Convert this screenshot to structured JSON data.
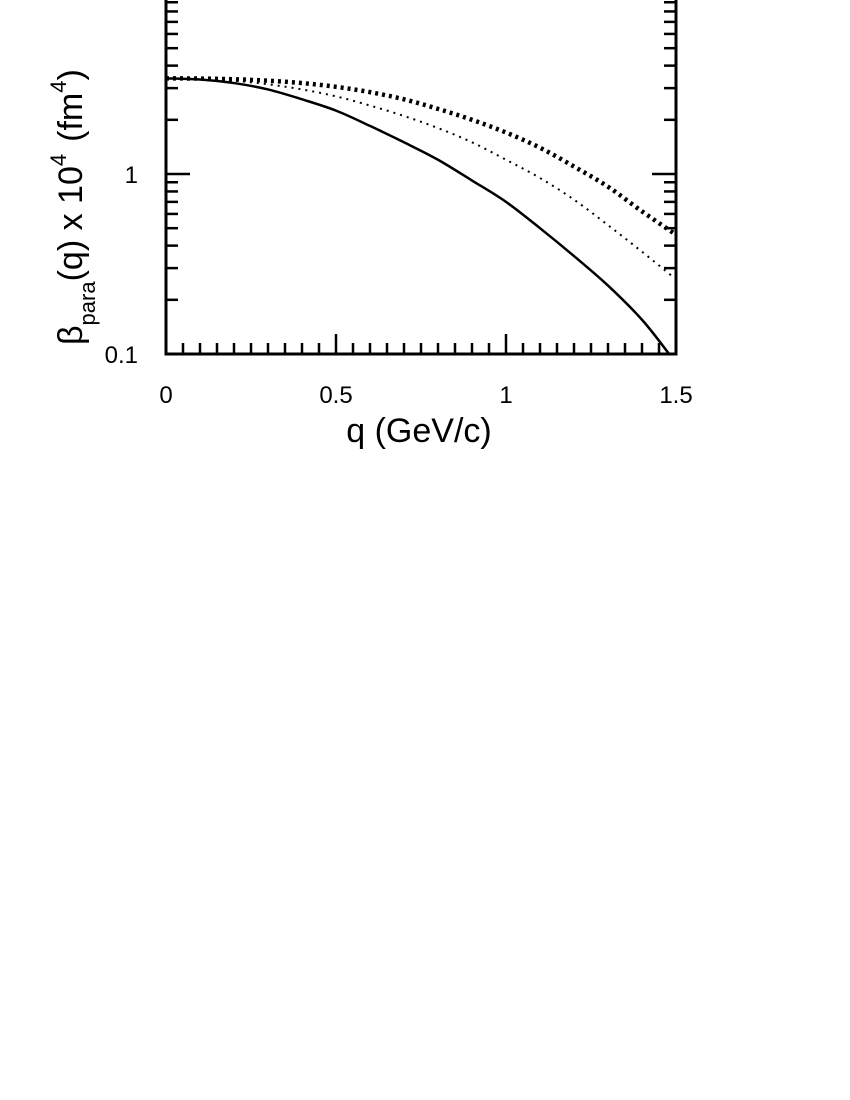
{
  "chart_data": {
    "type": "line",
    "title": "",
    "xlabel": "q  (GeV/c)",
    "ylabel": {
      "symbol": "β",
      "subscript": "para",
      "middle": "(q)  x  10",
      "power": "4",
      "unit_open": "(fm",
      "unit_power": "4",
      "unit_close": ")"
    },
    "xlim": [
      0,
      1.5
    ],
    "ylim": [
      0.1,
      10
    ],
    "yscale": "log",
    "grid": false,
    "legend": "none",
    "x_tick_labels": [
      "0",
      "0.5",
      "1",
      "1.5"
    ],
    "y_tick_labels": [
      "0.1",
      "1"
    ],
    "series": [
      {
        "style": "solid",
        "x": [
          0,
          0.1,
          0.2,
          0.3,
          0.4,
          0.5,
          0.6,
          0.7,
          0.8,
          0.9,
          1.0,
          1.1,
          1.2,
          1.3,
          1.4,
          1.48
        ],
        "y": [
          3.4,
          3.35,
          3.2,
          2.95,
          2.6,
          2.25,
          1.85,
          1.5,
          1.2,
          0.92,
          0.7,
          0.5,
          0.35,
          0.24,
          0.155,
          0.1
        ]
      },
      {
        "style": "dotted",
        "x": [
          0,
          0.1,
          0.2,
          0.3,
          0.4,
          0.5,
          0.6,
          0.7,
          0.8,
          0.9,
          1.0,
          1.1,
          1.2,
          1.3,
          1.4,
          1.5
        ],
        "y": [
          3.4,
          3.38,
          3.3,
          3.15,
          2.95,
          2.7,
          2.4,
          2.1,
          1.8,
          1.5,
          1.2,
          0.95,
          0.72,
          0.52,
          0.37,
          0.26
        ]
      },
      {
        "style": "thick-dotted",
        "x": [
          0,
          0.1,
          0.2,
          0.3,
          0.4,
          0.5,
          0.6,
          0.7,
          0.8,
          0.9,
          1.0,
          1.1,
          1.2,
          1.3,
          1.4,
          1.5
        ],
        "y": [
          3.4,
          3.39,
          3.36,
          3.3,
          3.2,
          3.05,
          2.85,
          2.6,
          2.3,
          2.0,
          1.7,
          1.4,
          1.1,
          0.85,
          0.62,
          0.46
        ]
      }
    ]
  }
}
